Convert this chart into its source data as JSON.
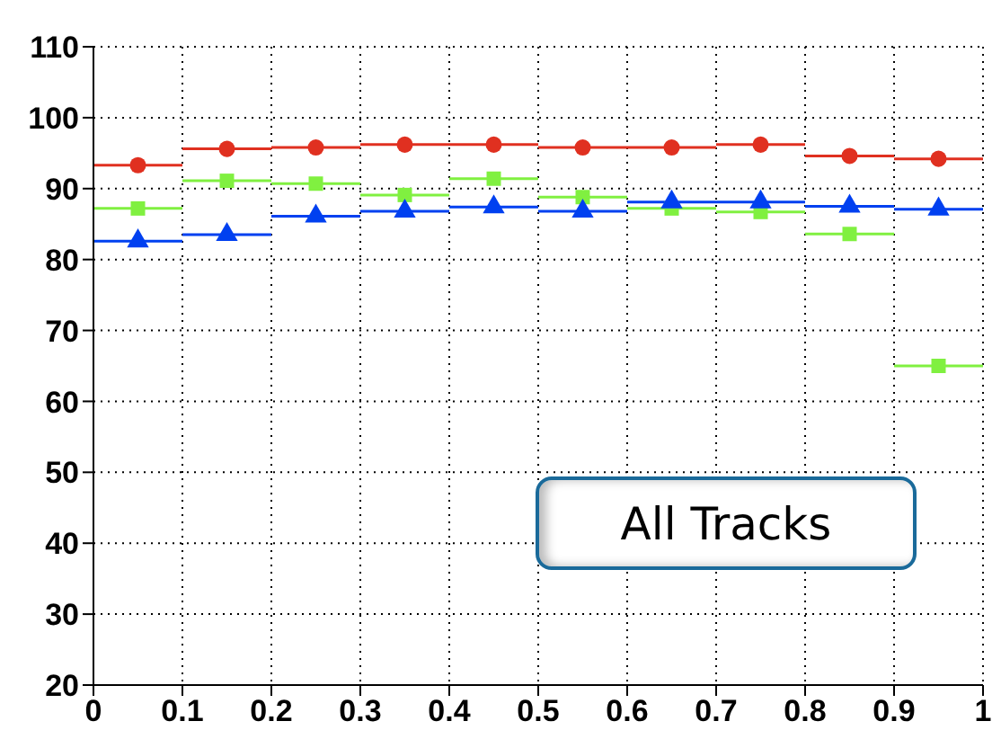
{
  "chart_data": {
    "type": "scatter",
    "x": [
      0.05,
      0.15,
      0.25,
      0.35,
      0.45,
      0.55,
      0.65,
      0.75,
      0.85,
      0.95
    ],
    "series": [
      {
        "color": "#e03020",
        "marker": "circle",
        "values": [
          93.3,
          95.6,
          95.8,
          96.2,
          96.2,
          95.8,
          95.8,
          96.2,
          94.6,
          94.2
        ],
        "xerrors": [
          0.05,
          0.05,
          0.05,
          0.05,
          0.05,
          0.05,
          0.05,
          0.05,
          0.05,
          0.05
        ]
      },
      {
        "color": "#80f040",
        "marker": "square",
        "values": [
          87.2,
          91.1,
          90.7,
          89.1,
          91.4,
          88.8,
          87.2,
          86.7,
          83.6,
          65.0
        ],
        "xerrors": [
          0.05,
          0.05,
          0.05,
          0.05,
          0.05,
          0.05,
          0.05,
          0.05,
          0.05,
          0.05
        ]
      },
      {
        "color": "#0040f0",
        "marker": "triangle",
        "values": [
          82.6,
          83.5,
          86.1,
          86.8,
          87.4,
          86.8,
          88.1,
          88.1,
          87.5,
          87.1
        ],
        "xerrors": [
          0.05,
          0.05,
          0.05,
          0.05,
          0.05,
          0.05,
          0.05,
          0.05,
          0.05,
          0.05
        ]
      }
    ],
    "xlim": [
      0,
      1
    ],
    "xticks": [
      0,
      0.1,
      0.2,
      0.3,
      0.4,
      0.5,
      0.6,
      0.7,
      0.8,
      0.9,
      1
    ],
    "ylim": [
      20,
      110
    ],
    "yticks": [
      20,
      30,
      40,
      50,
      60,
      70,
      80,
      90,
      100,
      110
    ],
    "grid": true,
    "legend": false,
    "annotations": [
      "All Tracks"
    ]
  }
}
